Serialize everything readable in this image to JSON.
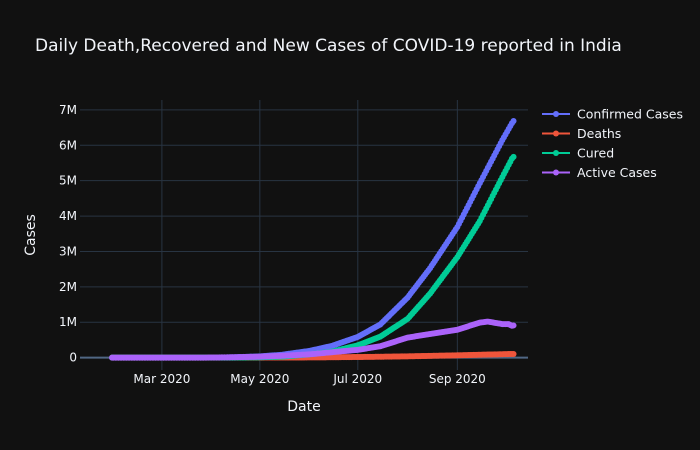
{
  "chart_data": {
    "type": "line",
    "title": "Daily Death,Recovered and New Cases of COVID-19 reported in India",
    "xlabel": "Date",
    "ylabel": "Cases",
    "x_range": [
      "2020-01-10",
      "2020-10-15"
    ],
    "ylim": [
      -350000,
      7280000
    ],
    "x_ticks": [
      {
        "value": "2020-03-01",
        "label": "Mar 2020"
      },
      {
        "value": "2020-05-01",
        "label": "May 2020"
      },
      {
        "value": "2020-07-01",
        "label": "Jul 2020"
      },
      {
        "value": "2020-09-01",
        "label": "Sep 2020"
      }
    ],
    "y_ticks": [
      {
        "value": 0,
        "label": "0"
      },
      {
        "value": 1000000,
        "label": "1M"
      },
      {
        "value": 2000000,
        "label": "2M"
      },
      {
        "value": 3000000,
        "label": "3M"
      },
      {
        "value": 4000000,
        "label": "4M"
      },
      {
        "value": 5000000,
        "label": "5M"
      },
      {
        "value": 6000000,
        "label": "6M"
      },
      {
        "value": 7000000,
        "label": "7M"
      }
    ],
    "grid": true,
    "legend_position": "top-right",
    "series": [
      {
        "name": "Confirmed Cases",
        "color": "#636efa",
        "points": [
          [
            "2020-01-30",
            1
          ],
          [
            "2020-03-01",
            3
          ],
          [
            "2020-03-15",
            110
          ],
          [
            "2020-04-01",
            1834
          ],
          [
            "2020-04-15",
            11933
          ],
          [
            "2020-05-01",
            35043
          ],
          [
            "2020-05-15",
            81970
          ],
          [
            "2020-06-01",
            190535
          ],
          [
            "2020-06-15",
            332424
          ],
          [
            "2020-07-01",
            585493
          ],
          [
            "2020-07-15",
            936181
          ],
          [
            "2020-08-01",
            1695988
          ],
          [
            "2020-08-15",
            2526192
          ],
          [
            "2020-09-01",
            3691166
          ],
          [
            "2020-09-15",
            4930236
          ],
          [
            "2020-09-29",
            6145291
          ],
          [
            "2020-10-05",
            6623815
          ],
          [
            "2020-10-06",
            6685082
          ]
        ]
      },
      {
        "name": "Deaths",
        "color": "#ef553b",
        "points": [
          [
            "2020-01-30",
            0
          ],
          [
            "2020-03-01",
            0
          ],
          [
            "2020-03-15",
            2
          ],
          [
            "2020-04-01",
            41
          ],
          [
            "2020-04-15",
            392
          ],
          [
            "2020-05-01",
            1147
          ],
          [
            "2020-05-15",
            2649
          ],
          [
            "2020-06-01",
            5394
          ],
          [
            "2020-06-15",
            9520
          ],
          [
            "2020-07-01",
            17400
          ],
          [
            "2020-07-15",
            24309
          ],
          [
            "2020-08-01",
            36511
          ],
          [
            "2020-08-15",
            49036
          ],
          [
            "2020-09-01",
            65288
          ],
          [
            "2020-09-15",
            80776
          ],
          [
            "2020-09-29",
            96318
          ],
          [
            "2020-10-05",
            102685
          ],
          [
            "2020-10-06",
            103569
          ]
        ]
      },
      {
        "name": "Cured",
        "color": "#00cc96",
        "points": [
          [
            "2020-01-30",
            0
          ],
          [
            "2020-03-01",
            3
          ],
          [
            "2020-03-15",
            13
          ],
          [
            "2020-04-01",
            143
          ],
          [
            "2020-04-15",
            1344
          ],
          [
            "2020-05-01",
            8889
          ],
          [
            "2020-05-15",
            27920
          ],
          [
            "2020-06-01",
            91819
          ],
          [
            "2020-06-15",
            169798
          ],
          [
            "2020-07-01",
            347979
          ],
          [
            "2020-07-15",
            592032
          ],
          [
            "2020-08-01",
            1094374
          ],
          [
            "2020-08-15",
            1808936
          ],
          [
            "2020-09-01",
            2839882
          ],
          [
            "2020-09-15",
            3859399
          ],
          [
            "2020-09-29",
            5101397
          ],
          [
            "2020-10-05",
            5622223
          ],
          [
            "2020-10-06",
            5672283
          ]
        ]
      },
      {
        "name": "Active Cases",
        "color": "#ab63fa",
        "points": [
          [
            "2020-01-30",
            1
          ],
          [
            "2020-03-01",
            0
          ],
          [
            "2020-03-15",
            95
          ],
          [
            "2020-04-01",
            1650
          ],
          [
            "2020-04-15",
            10197
          ],
          [
            "2020-05-01",
            25007
          ],
          [
            "2020-05-15",
            51401
          ],
          [
            "2020-06-01",
            93322
          ],
          [
            "2020-06-15",
            153106
          ],
          [
            "2020-07-01",
            220114
          ],
          [
            "2020-07-15",
            319840
          ],
          [
            "2020-08-01",
            565103
          ],
          [
            "2020-08-15",
            668220
          ],
          [
            "2020-09-01",
            785996
          ],
          [
            "2020-09-15",
            990061
          ],
          [
            "2020-09-20",
            1017754
          ],
          [
            "2020-09-29",
            947576
          ],
          [
            "2020-10-03",
            944996
          ],
          [
            "2020-10-05",
            898907
          ],
          [
            "2020-10-06",
            909230
          ]
        ]
      }
    ]
  }
}
